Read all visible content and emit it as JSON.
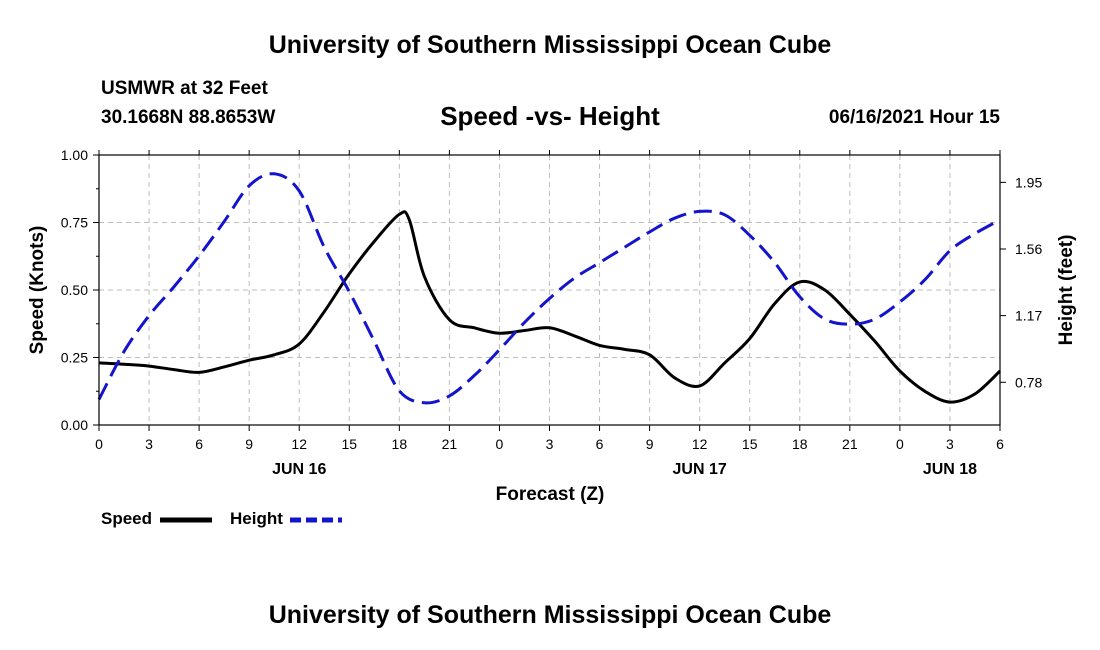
{
  "header": {
    "top_title": "University of Southern Mississippi Ocean Cube",
    "station": "USMWR at 32 Feet",
    "coordinates": "30.1668N  88.8653W",
    "chart_title": "Speed -vs- Height",
    "datetime": "06/16/2021 Hour 15",
    "bottom_title": "University of Southern Mississippi Ocean Cube"
  },
  "legend": {
    "speed_label": "Speed",
    "height_label": "Height"
  },
  "colors": {
    "speed": "#000000",
    "height": "#1414cc",
    "grid": "#bdbdbd"
  },
  "chart_data": {
    "type": "line",
    "title": "Speed -vs- Height",
    "xlabel": "Forecast (Z)",
    "ylabel": "Speed (Knots)",
    "y2label": "Height (feet)",
    "xlim": [
      0,
      54
    ],
    "ylim": [
      0,
      1.0
    ],
    "y2lim": [
      0.53,
      2.11
    ],
    "x_ticks": [
      0,
      3,
      6,
      9,
      12,
      15,
      18,
      21,
      24,
      27,
      30,
      33,
      36,
      39,
      42,
      45,
      48,
      51,
      54
    ],
    "x_tick_labels": [
      "0",
      "3",
      "6",
      "9",
      "12",
      "15",
      "18",
      "21",
      "0",
      "3",
      "6",
      "9",
      "12",
      "15",
      "18",
      "21",
      "0",
      "3",
      "6"
    ],
    "day_labels": [
      {
        "x": 12,
        "label": "JUN 16"
      },
      {
        "x": 36,
        "label": "JUN 17"
      },
      {
        "x": 51,
        "label": "JUN 18"
      }
    ],
    "y_ticks": [
      0.0,
      0.25,
      0.5,
      0.75,
      1.0
    ],
    "y_tick_labels": [
      "0.00",
      "0.25",
      "0.50",
      "0.75",
      "1.00"
    ],
    "y2_ticks": [
      0.78,
      1.17,
      1.56,
      1.95
    ],
    "y2_tick_labels": [
      "0.78",
      "1.17",
      "1.56",
      "1.95"
    ],
    "grid": true,
    "series": [
      {
        "name": "Speed",
        "axis": "left",
        "style": "solid",
        "x": [
          0,
          1.5,
          3,
          4.5,
          6,
          7.5,
          9,
          10.5,
          12,
          13.5,
          15,
          16.5,
          18,
          18.6,
          19.5,
          21,
          22.5,
          24,
          25.5,
          27,
          28.5,
          30,
          31.5,
          33,
          34.5,
          36,
          37.5,
          39,
          40.5,
          42,
          43.5,
          45,
          46.5,
          48,
          49.5,
          51,
          52.5,
          54
        ],
        "values": [
          0.23,
          0.225,
          0.218,
          0.205,
          0.195,
          0.215,
          0.24,
          0.26,
          0.3,
          0.42,
          0.56,
          0.68,
          0.78,
          0.76,
          0.55,
          0.39,
          0.36,
          0.34,
          0.35,
          0.36,
          0.33,
          0.295,
          0.28,
          0.26,
          0.175,
          0.145,
          0.23,
          0.32,
          0.45,
          0.53,
          0.5,
          0.41,
          0.31,
          0.2,
          0.125,
          0.085,
          0.115,
          0.2
        ]
      },
      {
        "name": "Height",
        "axis": "right",
        "style": "dashed",
        "x": [
          0,
          1.5,
          3,
          4.5,
          6,
          7.5,
          9,
          10.5,
          12,
          13.5,
          15,
          16.5,
          18,
          19.5,
          21,
          22.5,
          24,
          25.5,
          27,
          28.5,
          30,
          31.5,
          33,
          34.5,
          36,
          37.5,
          39,
          40.5,
          42,
          43.5,
          45,
          46.5,
          48,
          49.5,
          51,
          52.5,
          54
        ],
        "values": [
          0.68,
          0.96,
          1.17,
          1.34,
          1.52,
          1.72,
          1.93,
          2.0,
          1.9,
          1.57,
          1.31,
          1.02,
          0.73,
          0.66,
          0.7,
          0.82,
          0.97,
          1.13,
          1.27,
          1.39,
          1.48,
          1.57,
          1.66,
          1.74,
          1.78,
          1.76,
          1.64,
          1.48,
          1.28,
          1.15,
          1.12,
          1.15,
          1.25,
          1.38,
          1.55,
          1.65,
          1.73
        ]
      }
    ]
  }
}
